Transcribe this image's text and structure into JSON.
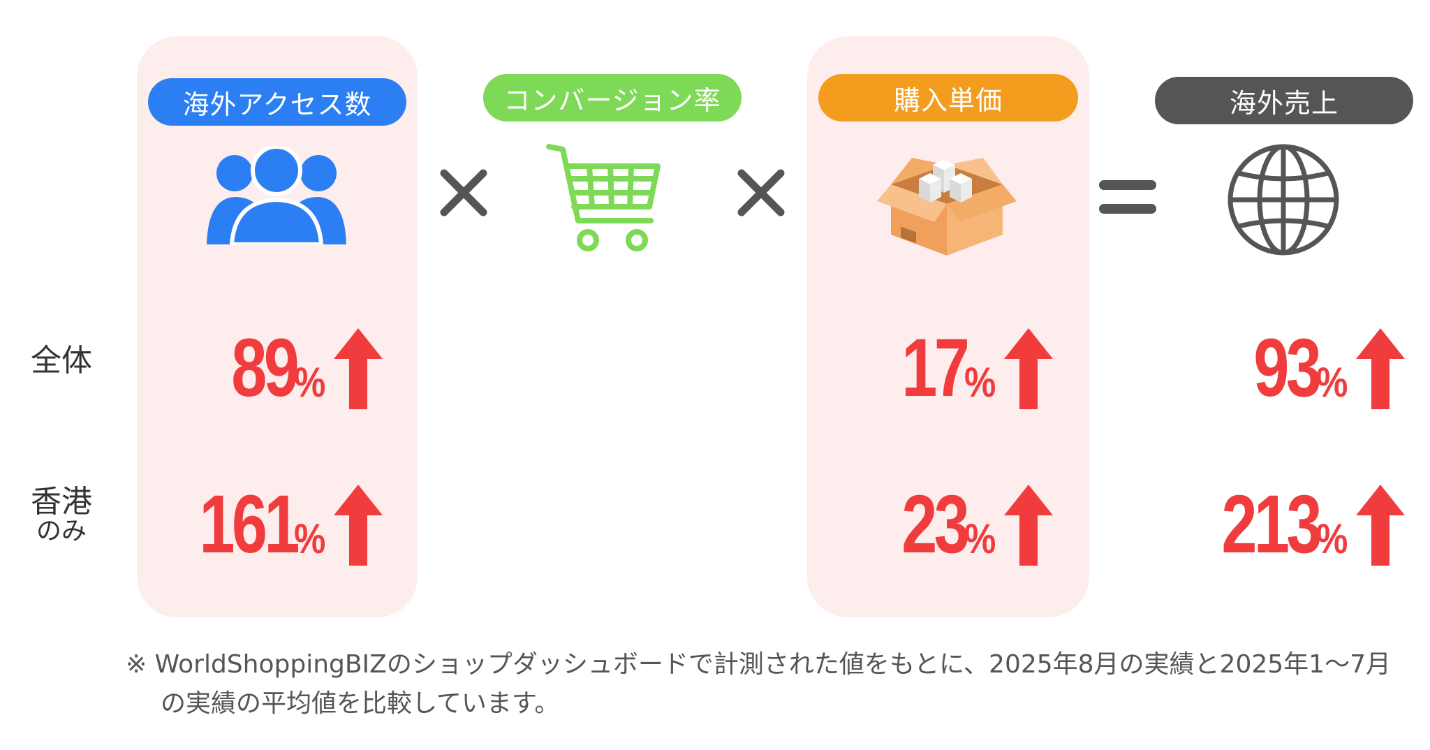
{
  "colors": {
    "panel": "#fdeded",
    "access": "#2b7ff3",
    "conversion": "#7ed957",
    "unit_price": "#f39c1e",
    "sales": "#555555",
    "value": "#f03c3c",
    "operator": "#555555"
  },
  "headers": {
    "access": "海外アクセス数",
    "conversion": "コンバージョン率",
    "unit_price": "購入単価",
    "sales": "海外売上"
  },
  "operators": {
    "times1": "×",
    "times2": "×",
    "equals": "="
  },
  "icons": {
    "access": "users-icon",
    "conversion": "shopping-cart-icon",
    "unit_price": "package-box-icon",
    "sales": "globe-icon"
  },
  "rows": {
    "total": {
      "label": "全体"
    },
    "hongkong": {
      "label": "香港",
      "sublabel": "のみ"
    }
  },
  "percent_symbol": "%",
  "chart_data": {
    "type": "table",
    "columns": [
      "海外アクセス数",
      "コンバージョン率",
      "購入単価",
      "海外売上"
    ],
    "rows": [
      {
        "label": "全体",
        "values": {
          "access": "89",
          "unit_price": "17",
          "sales": "93"
        }
      },
      {
        "label": "香港のみ",
        "values": {
          "access": "161",
          "unit_price": "23",
          "sales": "213"
        }
      }
    ],
    "unit": "%",
    "direction": "up"
  },
  "footnote": {
    "mark": "※",
    "line1": "WorldShoppingBIZのショップダッシュボードで計測された値をもとに、2025年8月の実績と2025年1〜7月",
    "line2": "の実績の平均値を比較しています。"
  }
}
